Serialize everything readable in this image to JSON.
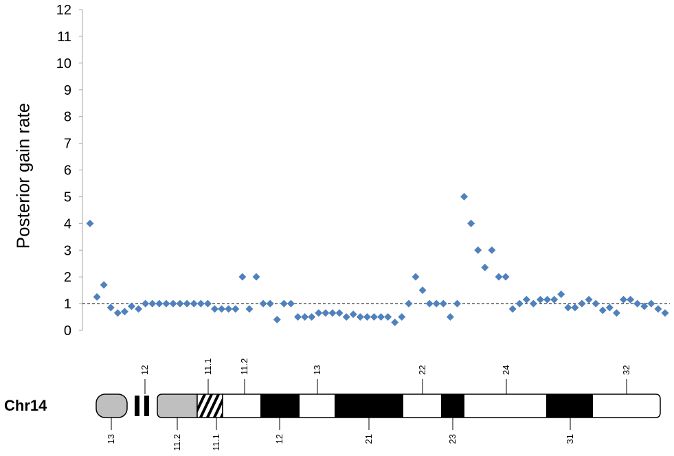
{
  "chart_data": {
    "type": "scatter",
    "ylabel": "Posterior gain rate",
    "ylim": [
      0,
      12
    ],
    "yticks": [
      "0",
      "1",
      "2",
      "3",
      "4",
      "5",
      "6",
      "7",
      "8",
      "9",
      "10",
      "11",
      "12"
    ],
    "reference_line": 1,
    "marker": "diamond",
    "color": "#4f81bd",
    "y": [
      4,
      1.25,
      1.7,
      0.85,
      0.65,
      0.7,
      0.9,
      0.8,
      1,
      1,
      1,
      1,
      1,
      1,
      1,
      1,
      1,
      1,
      0.8,
      0.8,
      0.8,
      0.8,
      2,
      0.8,
      2,
      1,
      1,
      0.4,
      1,
      1,
      0.5,
      0.5,
      0.5,
      0.65,
      0.65,
      0.65,
      0.65,
      0.5,
      0.6,
      0.5,
      0.5,
      0.5,
      0.5,
      0.5,
      0.3,
      0.5,
      1,
      2,
      1.5,
      1,
      1,
      1,
      0.5,
      1,
      5,
      4,
      3,
      2.35,
      3,
      2,
      2,
      0.8,
      1,
      1.15,
      1,
      1.15,
      1.15,
      1.15,
      1.35,
      0.85,
      0.85,
      1,
      1.15,
      1,
      0.75,
      0.85,
      0.65,
      1.15,
      1.15,
      1,
      0.9,
      1,
      0.8,
      0.65
    ]
  },
  "ideogram": {
    "chromosome": "Chr14",
    "top_bands": [
      "12",
      "11.1",
      "11.2",
      "13",
      "22",
      "24",
      "32"
    ],
    "bottom_bands": [
      "13",
      "11.2",
      "11.1",
      "12",
      "21",
      "23",
      "31"
    ]
  }
}
